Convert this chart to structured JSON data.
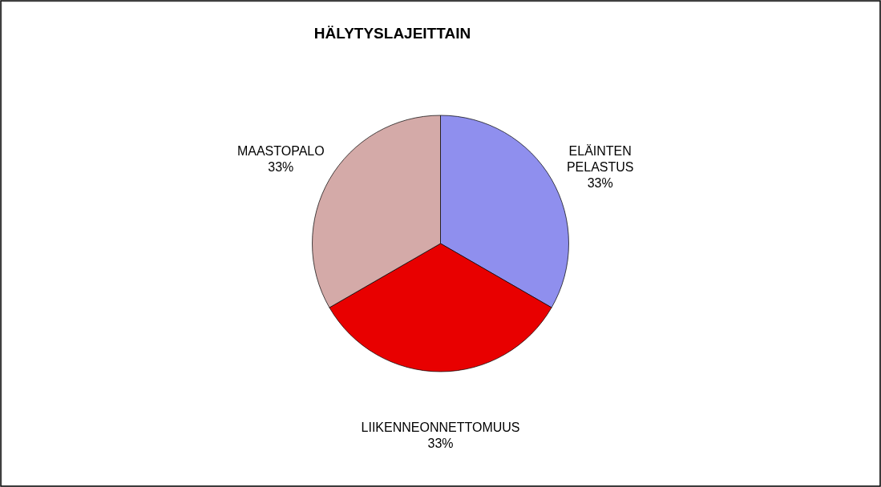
{
  "chart_data": {
    "type": "pie",
    "title": "HÄLYTYSLAJEITTAIN",
    "categories": [
      "ELÄINTEN PELASTUS",
      "LIIKENNEONNETTOMUUS",
      "MAASTOPALO"
    ],
    "values": [
      33,
      33,
      33
    ],
    "value_labels": [
      "33%",
      "33%",
      "33%"
    ],
    "colors": [
      "#8f8fee",
      "#e80000",
      "#d4aaa8"
    ]
  }
}
